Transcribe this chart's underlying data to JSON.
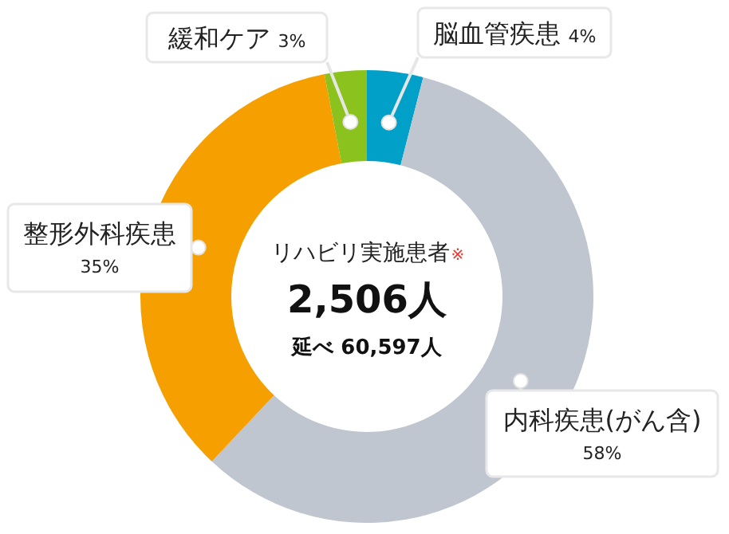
{
  "chart_data": {
    "type": "donut",
    "categories": [
      "脳血管疾患",
      "内科疾患(がん含)",
      "整形外科疾患",
      "緩和ケア"
    ],
    "values": [
      4,
      58,
      35,
      3
    ],
    "value_labels": [
      "4%",
      "58%",
      "35%",
      "3%"
    ],
    "colors": [
      "#00a0c9",
      "#c0c6cf",
      "#f5a000",
      "#8cc21e"
    ],
    "annotations": [
      "リハビリ実施患者",
      "※",
      "2,506人",
      "延べ 60,597人"
    ]
  }
}
